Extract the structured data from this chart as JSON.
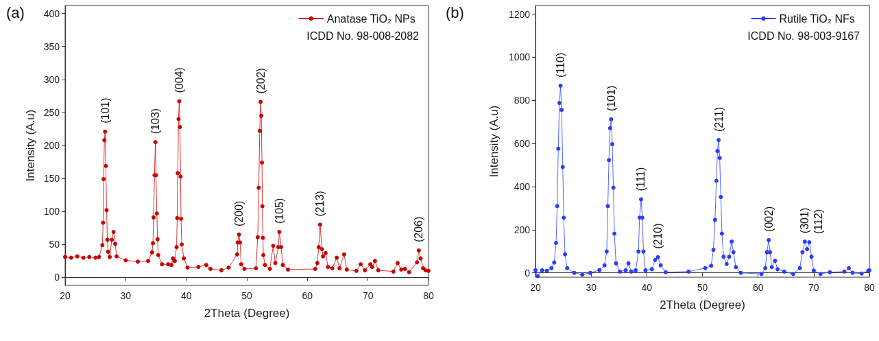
{
  "chart_data": [
    {
      "type": "line",
      "title": "(a)",
      "xlabel": "2Theta (Degree)",
      "ylabel": "Intensity (A.u)",
      "xlim": [
        20,
        80
      ],
      "xticks": [
        20,
        30,
        40,
        50,
        60,
        70,
        80
      ],
      "ylim": [
        -12,
        412
      ],
      "yticks": [
        0,
        50,
        100,
        150,
        200,
        250,
        300,
        350,
        400
      ],
      "legend": "top right",
      "marker": "circle",
      "line_style": "solid",
      "series": [
        {
          "name": "Anatase TiO₂ NPs",
          "color": "#cc0000",
          "x": [
            20,
            21,
            22,
            23,
            24,
            25,
            25.6,
            26.15,
            26.27,
            26.35,
            26.48,
            26.6,
            26.72,
            26.85,
            26.97,
            27.1,
            27.36,
            27.7,
            28.0,
            28.27,
            28.5,
            30,
            32,
            33.7,
            34.35,
            34.5,
            34.6,
            34.76,
            34.9,
            35.0,
            35.14,
            35.26,
            35.37,
            36.0,
            37.0,
            37.55,
            37.8,
            38.1,
            38.4,
            38.5,
            38.6,
            38.73,
            38.84,
            38.95,
            39.06,
            39.14,
            39.25,
            39.6,
            40.2,
            42,
            43.3,
            44,
            45.8,
            47.0,
            48.4,
            48.5,
            48.7,
            48.88,
            49.07,
            49.6,
            51.5,
            51.8,
            51.97,
            52.13,
            52.28,
            52.39,
            52.5,
            52.57,
            52.65,
            52.73,
            53.0,
            53.8,
            54.35,
            54.7,
            55.2,
            55.37,
            55.67,
            55.94,
            56.8,
            61.3,
            61.64,
            61.87,
            62.1,
            62.4,
            62.58,
            63.0,
            63.4,
            64.1,
            64.85,
            65.3,
            66.06,
            66.5,
            68.1,
            68.8,
            69.5,
            70.4,
            70.7,
            71.15,
            71.7,
            74.2,
            74.9,
            75.5,
            76.1,
            76.8,
            78.1,
            78.4,
            78.7,
            79.1,
            79.5,
            80
          ],
          "values": [
            31,
            30,
            32,
            30,
            31,
            30,
            31,
            49,
            83,
            149,
            208,
            221,
            169,
            102,
            57,
            39,
            31,
            57,
            69,
            51,
            32,
            26,
            24,
            25,
            38,
            52,
            91,
            155,
            205,
            155,
            97,
            58,
            34,
            20,
            20,
            19,
            29,
            25,
            46,
            90,
            158,
            240,
            267,
            228,
            153,
            89,
            50,
            29,
            15,
            16,
            19,
            13,
            11,
            15,
            35,
            53,
            65,
            53,
            20,
            13,
            14,
            61,
            136,
            222,
            266,
            245,
            174,
            108,
            60,
            34,
            19,
            13,
            48,
            22,
            46,
            69,
            46,
            19,
            12,
            13,
            22,
            46,
            80,
            43,
            32,
            37,
            16,
            14,
            30,
            14,
            35,
            12,
            10,
            20,
            11,
            20,
            16,
            25,
            11,
            9,
            22,
            12,
            13,
            8,
            23,
            41,
            29,
            14,
            11,
            10
          ]
        }
      ],
      "annotations": [
        "ICDD No. 98-008-2082",
        {
          "text": "(101)",
          "x": 26.6,
          "y": 221
        },
        {
          "text": "(103)",
          "x": 34.9,
          "y": 205
        },
        {
          "text": "(004)",
          "x": 38.84,
          "y": 267
        },
        {
          "text": "(200)",
          "x": 48.7,
          "y": 65
        },
        {
          "text": "(202)",
          "x": 52.28,
          "y": 266
        },
        {
          "text": "(105)",
          "x": 55.37,
          "y": 69
        },
        {
          "text": "(213)",
          "x": 62.1,
          "y": 80
        },
        {
          "text": "(206)",
          "x": 78.4,
          "y": 41
        }
      ]
    },
    {
      "type": "line",
      "title": "(b)",
      "xlabel": "2Theta (Degree)",
      "ylabel": "Intensity (A.u)",
      "xlim": [
        20,
        80
      ],
      "xticks": [
        20,
        30,
        40,
        50,
        60,
        70,
        80
      ],
      "ylim": [
        -20,
        1240
      ],
      "yticks": [
        0,
        200,
        400,
        600,
        800,
        1000,
        1200
      ],
      "legend": "top right",
      "marker": "circle",
      "line_style": "solid",
      "series": [
        {
          "name": "Rutile TiO₂ NFs",
          "color": "#2a3cff",
          "x": [
            20,
            20.4,
            21.2,
            22.05,
            22.87,
            23.36,
            23.7,
            23.9,
            24.1,
            24.3,
            24.5,
            24.7,
            24.9,
            25.08,
            25.3,
            25.7,
            26.97,
            28.4,
            29.84,
            31.5,
            32.4,
            32.8,
            33.0,
            33.2,
            33.4,
            33.6,
            33.8,
            34.0,
            34.18,
            34.47,
            35.16,
            36.2,
            36.7,
            37.2,
            38.0,
            38.5,
            38.7,
            38.97,
            39.2,
            39.4,
            39.76,
            40.9,
            41.5,
            42.0,
            42.5,
            43.4,
            47.5,
            50.5,
            51.56,
            51.97,
            52.26,
            52.5,
            52.7,
            52.9,
            53.1,
            53.3,
            53.5,
            53.8,
            54.35,
            54.8,
            55.25,
            55.57,
            56.0,
            56.9,
            60.6,
            61.3,
            61.6,
            61.9,
            62.14,
            62.46,
            63.04,
            63.5,
            64.7,
            66.3,
            67.5,
            67.97,
            68.4,
            68.8,
            69.2,
            69.6,
            70.0,
            71.2,
            72.9,
            75.5,
            76.3,
            76.98,
            78.6,
            79.8,
            80
          ],
          "values": [
            12,
            -15,
            12,
            10,
            22,
            48,
            139,
            310,
            576,
            788,
            868,
            756,
            491,
            256,
            86,
            22,
            0,
            -8,
            0,
            13,
            35,
            99,
            310,
            523,
            671,
            712,
            597,
            395,
            182,
            44,
            6,
            12,
            44,
            6,
            12,
            99,
            256,
            341,
            256,
            99,
            12,
            17,
            60,
            73,
            35,
            3,
            6,
            22,
            33,
            107,
            246,
            427,
            565,
            616,
            533,
            352,
            182,
            75,
            41,
            75,
            145,
            96,
            27,
            0,
            -5,
            22,
            96,
            152,
            96,
            27,
            56,
            17,
            6,
            -5,
            22,
            96,
            145,
            110,
            142,
            75,
            11,
            -5,
            3,
            6,
            22,
            0,
            -3,
            10,
            12
          ]
        }
      ],
      "annotations": [
        "ICDD No. 98-003-9167",
        {
          "text": "(110)",
          "x": 24.5,
          "y": 868
        },
        {
          "text": "(101)",
          "x": 33.6,
          "y": 712
        },
        {
          "text": "(111)",
          "x": 38.97,
          "y": 341
        },
        {
          "text": "(210)",
          "x": 42.0,
          "y": 73
        },
        {
          "text": "(211)",
          "x": 52.9,
          "y": 616
        },
        {
          "text": "(002)",
          "x": 61.9,
          "y": 152
        },
        {
          "text": "(301)",
          "x": 68.4,
          "y": 145
        },
        {
          "text": "(112)",
          "x": 69.2,
          "y": 142
        }
      ]
    }
  ]
}
